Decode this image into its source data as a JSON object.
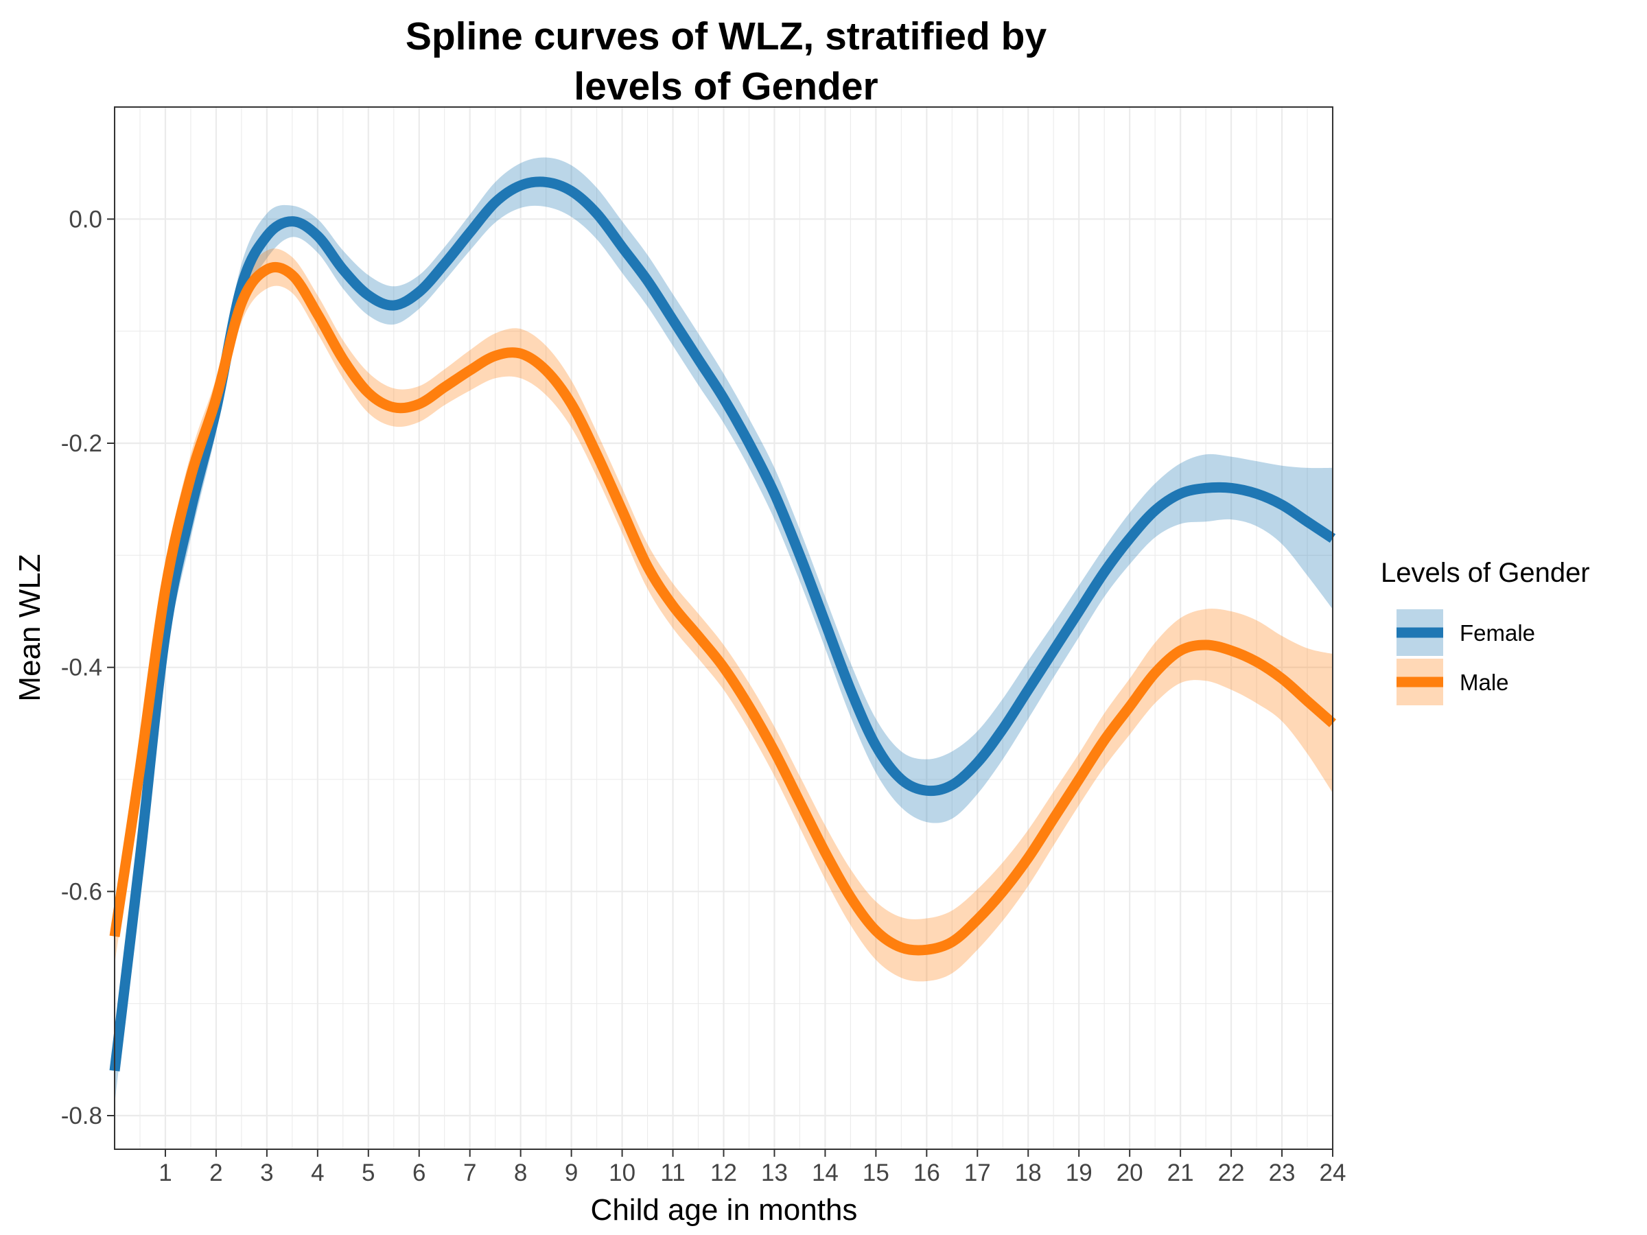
{
  "chart_data": {
    "type": "line",
    "title_lines": [
      "Spline curves of WLZ, stratified by",
      "levels of Gender"
    ],
    "xlabel": "Child age in months",
    "ylabel": "Mean WLZ",
    "xlim": [
      0,
      24
    ],
    "ylim": [
      -0.83,
      0.1
    ],
    "x_ticks": [
      1,
      2,
      3,
      4,
      5,
      6,
      7,
      8,
      9,
      10,
      11,
      12,
      13,
      14,
      15,
      16,
      17,
      18,
      19,
      20,
      21,
      22,
      23,
      24
    ],
    "y_ticks": [
      0.0,
      -0.2,
      -0.4,
      -0.6,
      -0.8
    ],
    "y_tick_labels": [
      "0.0",
      "-0.2",
      "-0.4",
      "-0.6",
      "-0.8"
    ],
    "grid": true,
    "legend": {
      "title": "Levels of Gender",
      "placement": "right"
    },
    "series": [
      {
        "name": "Female",
        "color": "#1F77B4",
        "band_color": "#1F77B4",
        "band_opacity": 0.3,
        "x": [
          0,
          0.5,
          1,
          1.5,
          2,
          2.5,
          3,
          3.5,
          4,
          4.5,
          5,
          5.5,
          6,
          6.5,
          7,
          7.5,
          8,
          8.5,
          9,
          9.5,
          10,
          10.5,
          11,
          11.5,
          12,
          12.5,
          13,
          13.5,
          14,
          14.5,
          15,
          15.5,
          16,
          16.5,
          17,
          17.5,
          18,
          18.5,
          19,
          19.5,
          20,
          20.5,
          21,
          21.5,
          22,
          22.5,
          23,
          23.5,
          24
        ],
        "y": [
          -0.76,
          -0.57,
          -0.37,
          -0.26,
          -0.17,
          -0.06,
          -0.015,
          -0.002,
          -0.015,
          -0.045,
          -0.068,
          -0.077,
          -0.065,
          -0.04,
          -0.012,
          0.015,
          0.03,
          0.033,
          0.025,
          0.005,
          -0.025,
          -0.055,
          -0.09,
          -0.125,
          -0.16,
          -0.2,
          -0.245,
          -0.3,
          -0.36,
          -0.42,
          -0.47,
          -0.5,
          -0.51,
          -0.505,
          -0.485,
          -0.455,
          -0.42,
          -0.385,
          -0.35,
          -0.315,
          -0.285,
          -0.26,
          -0.245,
          -0.24,
          -0.24,
          -0.245,
          -0.255,
          -0.27,
          -0.285
        ],
        "upper": [
          -0.73,
          -0.545,
          -0.345,
          -0.235,
          -0.15,
          -0.04,
          0.005,
          0.012,
          0.0,
          -0.028,
          -0.05,
          -0.06,
          -0.05,
          -0.025,
          0.004,
          0.033,
          0.05,
          0.055,
          0.048,
          0.028,
          -0.002,
          -0.032,
          -0.067,
          -0.102,
          -0.138,
          -0.178,
          -0.222,
          -0.277,
          -0.337,
          -0.396,
          -0.446,
          -0.475,
          -0.482,
          -0.475,
          -0.457,
          -0.428,
          -0.394,
          -0.361,
          -0.327,
          -0.293,
          -0.262,
          -0.236,
          -0.218,
          -0.21,
          -0.212,
          -0.216,
          -0.22,
          -0.222,
          -0.222
        ],
        "lower": [
          -0.79,
          -0.595,
          -0.395,
          -0.285,
          -0.19,
          -0.08,
          -0.035,
          -0.016,
          -0.03,
          -0.062,
          -0.086,
          -0.094,
          -0.08,
          -0.055,
          -0.028,
          -0.003,
          0.01,
          0.011,
          0.002,
          -0.018,
          -0.048,
          -0.078,
          -0.113,
          -0.148,
          -0.182,
          -0.222,
          -0.268,
          -0.323,
          -0.383,
          -0.444,
          -0.494,
          -0.525,
          -0.538,
          -0.535,
          -0.513,
          -0.482,
          -0.446,
          -0.409,
          -0.373,
          -0.337,
          -0.308,
          -0.284,
          -0.272,
          -0.27,
          -0.268,
          -0.274,
          -0.29,
          -0.318,
          -0.348
        ]
      },
      {
        "name": "Male",
        "color": "#FF7F0E",
        "band_color": "#FF7F0E",
        "band_opacity": 0.3,
        "x": [
          0,
          0.5,
          1,
          1.5,
          2,
          2.5,
          3,
          3.5,
          4,
          4.5,
          5,
          5.5,
          6,
          6.5,
          7,
          7.5,
          8,
          8.5,
          9,
          9.5,
          10,
          10.5,
          11,
          11.5,
          12,
          12.5,
          13,
          13.5,
          14,
          14.5,
          15,
          15.5,
          16,
          16.5,
          17,
          17.5,
          18,
          18.5,
          19,
          19.5,
          20,
          20.5,
          21,
          21.5,
          22,
          22.5,
          23,
          23.5,
          24
        ],
        "y": [
          -0.64,
          -0.49,
          -0.33,
          -0.23,
          -0.16,
          -0.075,
          -0.045,
          -0.05,
          -0.085,
          -0.125,
          -0.155,
          -0.168,
          -0.165,
          -0.15,
          -0.135,
          -0.122,
          -0.12,
          -0.135,
          -0.165,
          -0.21,
          -0.26,
          -0.31,
          -0.345,
          -0.372,
          -0.4,
          -0.435,
          -0.475,
          -0.52,
          -0.565,
          -0.605,
          -0.635,
          -0.65,
          -0.652,
          -0.645,
          -0.625,
          -0.6,
          -0.57,
          -0.535,
          -0.5,
          -0.465,
          -0.435,
          -0.405,
          -0.385,
          -0.38,
          -0.385,
          -0.395,
          -0.41,
          -0.43,
          -0.45
        ],
        "upper": [
          -0.62,
          -0.47,
          -0.31,
          -0.21,
          -0.142,
          -0.058,
          -0.028,
          -0.034,
          -0.068,
          -0.108,
          -0.137,
          -0.151,
          -0.149,
          -0.134,
          -0.117,
          -0.102,
          -0.098,
          -0.113,
          -0.144,
          -0.19,
          -0.24,
          -0.29,
          -0.325,
          -0.352,
          -0.38,
          -0.414,
          -0.453,
          -0.497,
          -0.541,
          -0.58,
          -0.609,
          -0.623,
          -0.624,
          -0.617,
          -0.598,
          -0.574,
          -0.545,
          -0.511,
          -0.477,
          -0.441,
          -0.41,
          -0.378,
          -0.356,
          -0.348,
          -0.35,
          -0.358,
          -0.372,
          -0.383,
          -0.388
        ],
        "lower": [
          -0.665,
          -0.51,
          -0.35,
          -0.25,
          -0.178,
          -0.092,
          -0.062,
          -0.066,
          -0.102,
          -0.142,
          -0.173,
          -0.185,
          -0.181,
          -0.166,
          -0.153,
          -0.142,
          -0.142,
          -0.157,
          -0.186,
          -0.23,
          -0.28,
          -0.33,
          -0.365,
          -0.392,
          -0.42,
          -0.456,
          -0.497,
          -0.543,
          -0.589,
          -0.63,
          -0.661,
          -0.677,
          -0.68,
          -0.673,
          -0.652,
          -0.626,
          -0.595,
          -0.559,
          -0.523,
          -0.489,
          -0.46,
          -0.432,
          -0.414,
          -0.412,
          -0.42,
          -0.432,
          -0.448,
          -0.477,
          -0.512
        ]
      }
    ]
  }
}
